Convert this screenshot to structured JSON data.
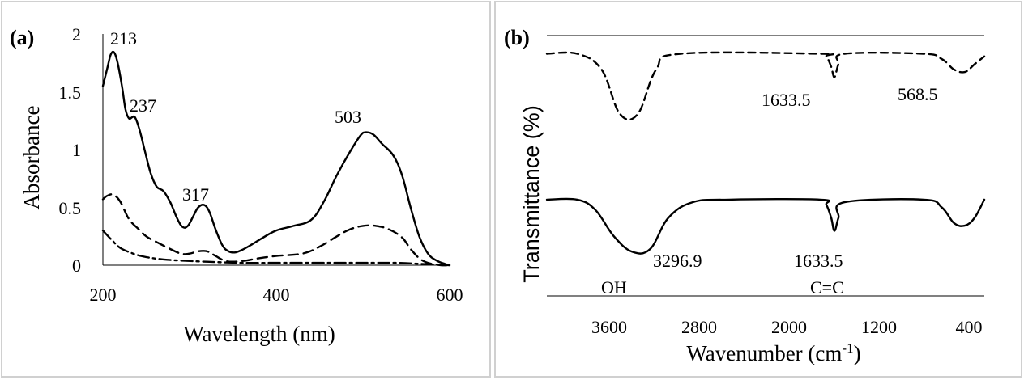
{
  "chart_data": [
    {
      "panel_label": "(a)",
      "type": "line",
      "xlabel": "Wavelength (nm)",
      "ylabel": "Absorbance",
      "xlim": [
        200,
        600
      ],
      "ylim": [
        0,
        2
      ],
      "x_ticks": [
        "200",
        "400",
        "600"
      ],
      "y_ticks": [
        "0",
        "0.5",
        "1",
        "1.5",
        "2"
      ],
      "grid": false,
      "series": [
        {
          "name": "solid",
          "style": "solid",
          "points": [
            [
              200,
              1.55
            ],
            [
              205,
              1.7
            ],
            [
              209,
              1.82
            ],
            [
              213,
              1.84
            ],
            [
              217,
              1.75
            ],
            [
              222,
              1.55
            ],
            [
              226,
              1.35
            ],
            [
              230,
              1.27
            ],
            [
              234,
              1.28
            ],
            [
              237,
              1.28
            ],
            [
              242,
              1.18
            ],
            [
              248,
              1.0
            ],
            [
              255,
              0.8
            ],
            [
              262,
              0.68
            ],
            [
              270,
              0.64
            ],
            [
              278,
              0.54
            ],
            [
              286,
              0.4
            ],
            [
              292,
              0.33
            ],
            [
              298,
              0.34
            ],
            [
              304,
              0.42
            ],
            [
              310,
              0.5
            ],
            [
              317,
              0.52
            ],
            [
              323,
              0.46
            ],
            [
              330,
              0.31
            ],
            [
              338,
              0.17
            ],
            [
              345,
              0.12
            ],
            [
              352,
              0.11
            ],
            [
              360,
              0.13
            ],
            [
              372,
              0.18
            ],
            [
              385,
              0.24
            ],
            [
              400,
              0.3
            ],
            [
              420,
              0.34
            ],
            [
              440,
              0.39
            ],
            [
              455,
              0.55
            ],
            [
              470,
              0.78
            ],
            [
              485,
              0.98
            ],
            [
              497,
              1.12
            ],
            [
              503,
              1.15
            ],
            [
              512,
              1.13
            ],
            [
              522,
              1.05
            ],
            [
              535,
              0.95
            ],
            [
              545,
              0.78
            ],
            [
              555,
              0.5
            ],
            [
              565,
              0.25
            ],
            [
              575,
              0.1
            ],
            [
              585,
              0.04
            ],
            [
              595,
              0.01
            ],
            [
              600,
              0.0
            ]
          ]
        },
        {
          "name": "dashed",
          "style": "dashed",
          "points": [
            [
              200,
              0.57
            ],
            [
              205,
              0.6
            ],
            [
              212,
              0.61
            ],
            [
              220,
              0.55
            ],
            [
              230,
              0.4
            ],
            [
              240,
              0.32
            ],
            [
              250,
              0.25
            ],
            [
              262,
              0.2
            ],
            [
              275,
              0.15
            ],
            [
              290,
              0.1
            ],
            [
              300,
              0.1
            ],
            [
              310,
              0.12
            ],
            [
              320,
              0.12
            ],
            [
              330,
              0.08
            ],
            [
              340,
              0.04
            ],
            [
              350,
              0.03
            ],
            [
              365,
              0.04
            ],
            [
              380,
              0.06
            ],
            [
              400,
              0.08
            ],
            [
              430,
              0.1
            ],
            [
              450,
              0.16
            ],
            [
              470,
              0.25
            ],
            [
              485,
              0.31
            ],
            [
              500,
              0.34
            ],
            [
              515,
              0.34
            ],
            [
              530,
              0.31
            ],
            [
              545,
              0.24
            ],
            [
              555,
              0.14
            ],
            [
              565,
              0.06
            ],
            [
              575,
              0.02
            ],
            [
              590,
              0.0
            ],
            [
              600,
              0.0
            ]
          ]
        },
        {
          "name": "dash-dot",
          "style": "dashdot",
          "points": [
            [
              200,
              0.3
            ],
            [
              210,
              0.22
            ],
            [
              220,
              0.15
            ],
            [
              235,
              0.1
            ],
            [
              250,
              0.07
            ],
            [
              270,
              0.05
            ],
            [
              290,
              0.04
            ],
            [
              320,
              0.03
            ],
            [
              360,
              0.02
            ],
            [
              400,
              0.02
            ],
            [
              450,
              0.02
            ],
            [
              500,
              0.02
            ],
            [
              540,
              0.02
            ],
            [
              570,
              0.01
            ],
            [
              600,
              0.0
            ]
          ]
        }
      ],
      "annotations": [
        {
          "text": "213",
          "x": 213,
          "y": 1.84
        },
        {
          "text": "237",
          "x": 237,
          "y": 1.28
        },
        {
          "text": "317",
          "x": 317,
          "y": 0.52
        },
        {
          "text": "503",
          "x": 503,
          "y": 1.15
        }
      ]
    },
    {
      "panel_label": "(b)",
      "type": "line",
      "xlabel": "Wavenumber (cm",
      "xlabel_superscript": "-1",
      "xlabel_suffix": ")",
      "ylabel": "Transmittance (%)",
      "xlim": [
        4000,
        400
      ],
      "x_reversed": true,
      "x_ticks": [
        "3600",
        "2800",
        "2000",
        "1200",
        "400"
      ],
      "grid": false,
      "series": [
        {
          "name": "dashed",
          "style": "dashed",
          "points": [
            [
              4000,
              0.93
            ],
            [
              3750,
              0.93
            ],
            [
              3550,
              0.87
            ],
            [
              3400,
              0.7
            ],
            [
              3250,
              0.7
            ],
            [
              3100,
              0.87
            ],
            [
              2900,
              0.93
            ],
            [
              1750,
              0.93
            ],
            [
              1700,
              0.92
            ],
            [
              1660,
              0.88
            ],
            [
              1633.5,
              0.84
            ],
            [
              1600,
              0.89
            ],
            [
              1550,
              0.93
            ],
            [
              900,
              0.93
            ],
            [
              750,
              0.91
            ],
            [
              650,
              0.87
            ],
            [
              560,
              0.86
            ],
            [
              480,
              0.89
            ],
            [
              400,
              0.92
            ]
          ]
        },
        {
          "name": "solid",
          "style": "solid",
          "points": [
            [
              4000,
              0.37
            ],
            [
              3750,
              0.37
            ],
            [
              3600,
              0.33
            ],
            [
              3450,
              0.23
            ],
            [
              3300,
              0.17
            ],
            [
              3150,
              0.18
            ],
            [
              3000,
              0.3
            ],
            [
              2800,
              0.36
            ],
            [
              2500,
              0.37
            ],
            [
              1750,
              0.37
            ],
            [
              1700,
              0.35
            ],
            [
              1660,
              0.3
            ],
            [
              1633.5,
              0.25
            ],
            [
              1600,
              0.3
            ],
            [
              1550,
              0.36
            ],
            [
              900,
              0.37
            ],
            [
              750,
              0.34
            ],
            [
              650,
              0.28
            ],
            [
              560,
              0.27
            ],
            [
              480,
              0.3
            ],
            [
              400,
              0.37
            ]
          ]
        }
      ],
      "annotations": [
        {
          "text": "1633.5",
          "x": 1633.5,
          "series": "dashed"
        },
        {
          "text": "568.5",
          "x": 568.5,
          "series": "dashed"
        },
        {
          "text": "3296.9",
          "x": 3296.9,
          "series": "solid"
        },
        {
          "text": "1633.5",
          "x": 1633.5,
          "series": "solid"
        },
        {
          "text": "OH",
          "x": 3296.9,
          "series": "band"
        },
        {
          "text": "C=C",
          "x": 1633.5,
          "series": "band"
        }
      ]
    }
  ]
}
